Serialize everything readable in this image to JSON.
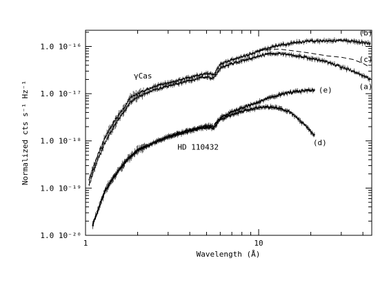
{
  "chart_data": {
    "type": "line",
    "title": "",
    "xlabel": "Wavelength (Å)",
    "ylabel": "Normalized cts s⁻¹ Hz⁻¹",
    "xscale": "log",
    "yscale": "log",
    "xlim": [
      1,
      45
    ],
    "ylim": [
      1e-20,
      2.2e-16
    ],
    "grid": false,
    "legend": "none",
    "x_ticks": [
      {
        "value": 1,
        "label": "1"
      },
      {
        "value": 10,
        "label": "10"
      }
    ],
    "y_ticks": [
      {
        "value": 1e-16,
        "label": "1.0 10⁻¹⁶"
      },
      {
        "value": 1e-17,
        "label": "1.0 10⁻¹⁷"
      },
      {
        "value": 1e-18,
        "label": "1.0 10⁻¹⁸"
      },
      {
        "value": 1e-19,
        "label": "1.0 10⁻¹⁹"
      },
      {
        "value": 1e-20,
        "label": "1.0 10⁻²⁰"
      }
    ],
    "annotations": [
      {
        "text": "γCas",
        "x": 1.9,
        "y": 2.1e-17
      },
      {
        "text": "HD 110432",
        "x": 3.4,
        "y": 6.5e-19
      }
    ],
    "series": [
      {
        "name": "(b)",
        "style": "points",
        "x": [
          1.05,
          1.15,
          1.3,
          1.5,
          1.7,
          1.8,
          2.0,
          2.5,
          3.0,
          4.0,
          5.0,
          5.5,
          6.0,
          7.0,
          8.0,
          10.0,
          12.0,
          15.0,
          20.0,
          25.0,
          30.0,
          35.0,
          40.0,
          44.0
        ],
        "y": [
          1.5e-19,
          4e-19,
          1.2e-18,
          3e-18,
          5.5e-18,
          8e-18,
          1e-17,
          1.4e-17,
          1.7e-17,
          2.2e-17,
          2.7e-17,
          2.5e-17,
          4.2e-17,
          5.2e-17,
          6e-17,
          7.8e-17,
          9.8e-17,
          1.15e-16,
          1.3e-16,
          1.33e-16,
          1.33e-16,
          1.28e-16,
          1.22e-16,
          1.15e-16
        ]
      },
      {
        "name": "(c)",
        "style": "dashed",
        "x": [
          10.0,
          12.0,
          13.0,
          15.0,
          18.0,
          20.0,
          25.0,
          30.0,
          35.0,
          40.0,
          44.0
        ],
        "y": [
          8.2e-17,
          8.5e-17,
          8.8e-17,
          8.3e-17,
          7.6e-17,
          7.2e-17,
          6.3e-17,
          5.9e-17,
          5.3e-17,
          4.4e-17,
          3.6e-17
        ]
      },
      {
        "name": "(a)",
        "style": "points",
        "x": [
          1.05,
          1.15,
          1.3,
          1.5,
          1.7,
          1.8,
          2.0,
          2.5,
          3.0,
          4.0,
          5.0,
          5.5,
          6.0,
          7.0,
          8.0,
          10.0,
          12.0,
          15.0,
          20.0,
          25.0,
          30.0,
          35.0,
          40.0,
          44.0
        ],
        "y": [
          1.2e-19,
          3.2e-19,
          9.5e-19,
          2.4e-18,
          4.6e-18,
          6.5e-18,
          8.5e-18,
          1.2e-17,
          1.45e-17,
          1.9e-17,
          2.3e-17,
          2.1e-17,
          3.5e-17,
          4.3e-17,
          5e-17,
          6.2e-17,
          7.2e-17,
          6.8e-17,
          5.6e-17,
          4.6e-17,
          3.7e-17,
          3e-17,
          2.4e-17,
          2e-17
        ]
      },
      {
        "name": "(e)",
        "style": "points",
        "x": [
          1.1,
          1.2,
          1.3,
          1.5,
          1.7,
          1.8,
          2.0,
          2.5,
          3.0,
          4.0,
          5.0,
          5.5,
          6.0,
          7.0,
          8.0,
          10.0,
          12.0,
          15.0,
          18.0,
          21.0
        ],
        "y": [
          1.7e-20,
          4e-20,
          9e-20,
          2e-19,
          3.6e-19,
          4.5e-19,
          6.3e-19,
          9.2e-19,
          1.25e-18,
          1.7e-18,
          2.1e-18,
          2e-18,
          3.1e-18,
          4.1e-18,
          5e-18,
          6.6e-18,
          8.6e-18,
          1.05e-17,
          1.15e-17,
          1.2e-17
        ]
      },
      {
        "name": "(d)",
        "style": "points",
        "x": [
          1.1,
          1.2,
          1.3,
          1.5,
          1.7,
          1.8,
          2.0,
          2.5,
          3.0,
          4.0,
          5.0,
          5.5,
          6.0,
          7.0,
          8.0,
          10.0,
          12.0,
          15.0,
          18.0,
          21.0
        ],
        "y": [
          1.7e-20,
          4e-20,
          9e-20,
          2e-19,
          3.6e-19,
          4.5e-19,
          6.3e-19,
          9.2e-19,
          1.2e-18,
          1.6e-18,
          1.95e-18,
          1.85e-18,
          2.8e-18,
          3.6e-18,
          4.2e-18,
          5.1e-18,
          5.2e-18,
          4.2e-18,
          2.4e-18,
          1.3e-18
        ]
      }
    ],
    "curve_labels": [
      {
        "text": "(b)",
        "series": "(b)"
      },
      {
        "text": "(c)",
        "series": "(c)"
      },
      {
        "text": "(a)",
        "series": "(a)"
      },
      {
        "text": "(e)",
        "series": "(e)"
      },
      {
        "text": "(d)",
        "series": "(d)"
      }
    ]
  }
}
